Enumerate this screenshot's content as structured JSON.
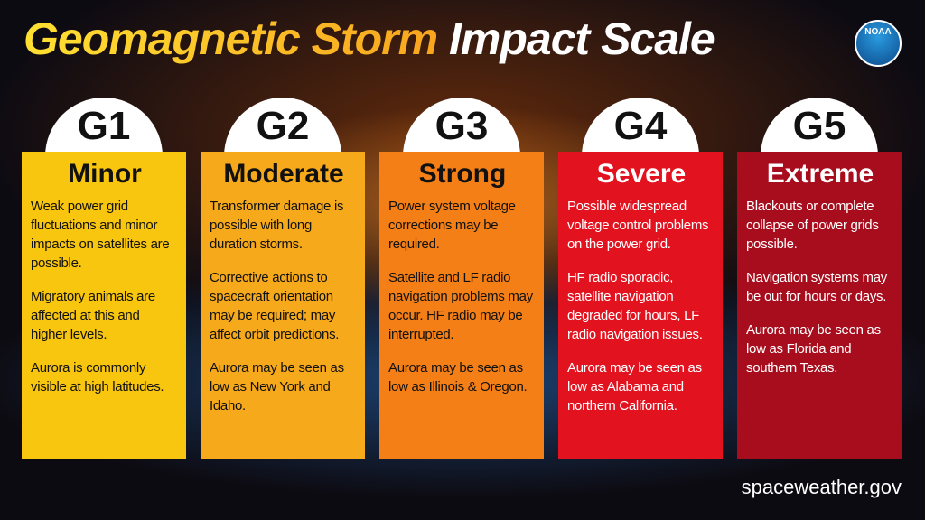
{
  "header": {
    "title_highlight": "Geomagnetic Storm",
    "title_rest": "Impact Scale",
    "logo": "NOAA"
  },
  "cards": [
    {
      "level": "G1",
      "name": "Minor",
      "color": "#f8c50f",
      "paragraphs": [
        "Weak power grid fluctuations and minor impacts on satellites are possible.",
        "Migratory animals are affected at this and higher levels.",
        "Aurora is commonly visible at high latitudes."
      ]
    },
    {
      "level": "G2",
      "name": "Moderate",
      "color": "#f7a91c",
      "paragraphs": [
        "Transformer damage is possible with long duration storms.",
        "Corrective actions to spacecraft orientation may be required; may affect orbit predictions.",
        "Aurora may be seen as low as New York and Idaho."
      ]
    },
    {
      "level": "G3",
      "name": "Strong",
      "color": "#f47f17",
      "paragraphs": [
        "Power system voltage corrections may be required.",
        "Satellite and LF radio navigation problems may occur. HF radio may be interrupted.",
        "Aurora may be seen as low as Illinois & Oregon."
      ]
    },
    {
      "level": "G4",
      "name": "Severe",
      "color": "#e2121f",
      "paragraphs": [
        "Possible widespread voltage control problems on the power grid.",
        "HF radio sporadic, satellite navigation degraded for hours, LF radio navigation issues.",
        "Aurora may be seen as low as Alabama and northern California."
      ]
    },
    {
      "level": "G5",
      "name": "Extreme",
      "color": "#a70d1d",
      "paragraphs": [
        "Blackouts or complete collapse of power grids possible.",
        "Navigation systems may be out for hours or days.",
        "Aurora may be seen as low as Florida and southern Texas."
      ]
    }
  ],
  "footer": {
    "website": "spaceweather.gov"
  }
}
